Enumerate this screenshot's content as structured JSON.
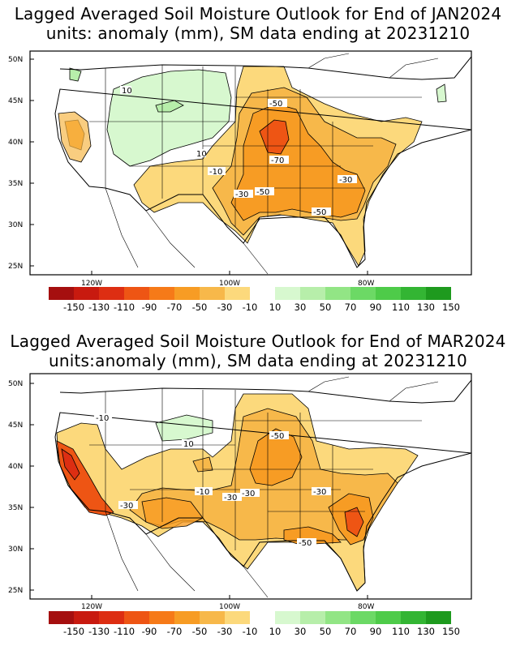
{
  "colorbar": {
    "labels": [
      "-150",
      "-130",
      "-110",
      "-90",
      "-70",
      "-50",
      "-30",
      "-10",
      "10",
      "30",
      "50",
      "70",
      "90",
      "110",
      "130",
      "150"
    ],
    "colors": [
      "#a50f0f",
      "#c81a0f",
      "#dd2e12",
      "#ee5514",
      "#f67a18",
      "#f79c24",
      "#f7b84a",
      "#fcd97c",
      "#ffffff",
      "#d7f8cf",
      "#b7eeaa",
      "#92e585",
      "#6cd965",
      "#4ecb49",
      "#33b533",
      "#1e9a1e"
    ]
  },
  "axes": {
    "lat_labels": [
      "50N",
      "45N",
      "40N",
      "35N",
      "30N",
      "25N"
    ],
    "lon_labels": [
      "120W",
      "100W",
      "80W"
    ]
  },
  "maps": [
    {
      "id": "jan",
      "title_line1": "Lagged Averaged Soil Moisture Outlook for End of JAN2024",
      "title_line2": "units: anomaly (mm), SM data ending at 20231210",
      "contour_labels": [
        "10",
        "-50",
        "10",
        "-10",
        "-70",
        "-30",
        "-30",
        "-50",
        "-50"
      ]
    },
    {
      "id": "mar",
      "title_line1": "Lagged Averaged Soil Moisture Outlook for End of MAR2024",
      "title_line2": "units:anomaly (mm), SM data ending at 20231210",
      "contour_labels": [
        "-10",
        "10",
        "-50",
        "-10",
        "-30",
        "-30",
        "-30",
        "-30",
        "-50"
      ]
    }
  ]
}
